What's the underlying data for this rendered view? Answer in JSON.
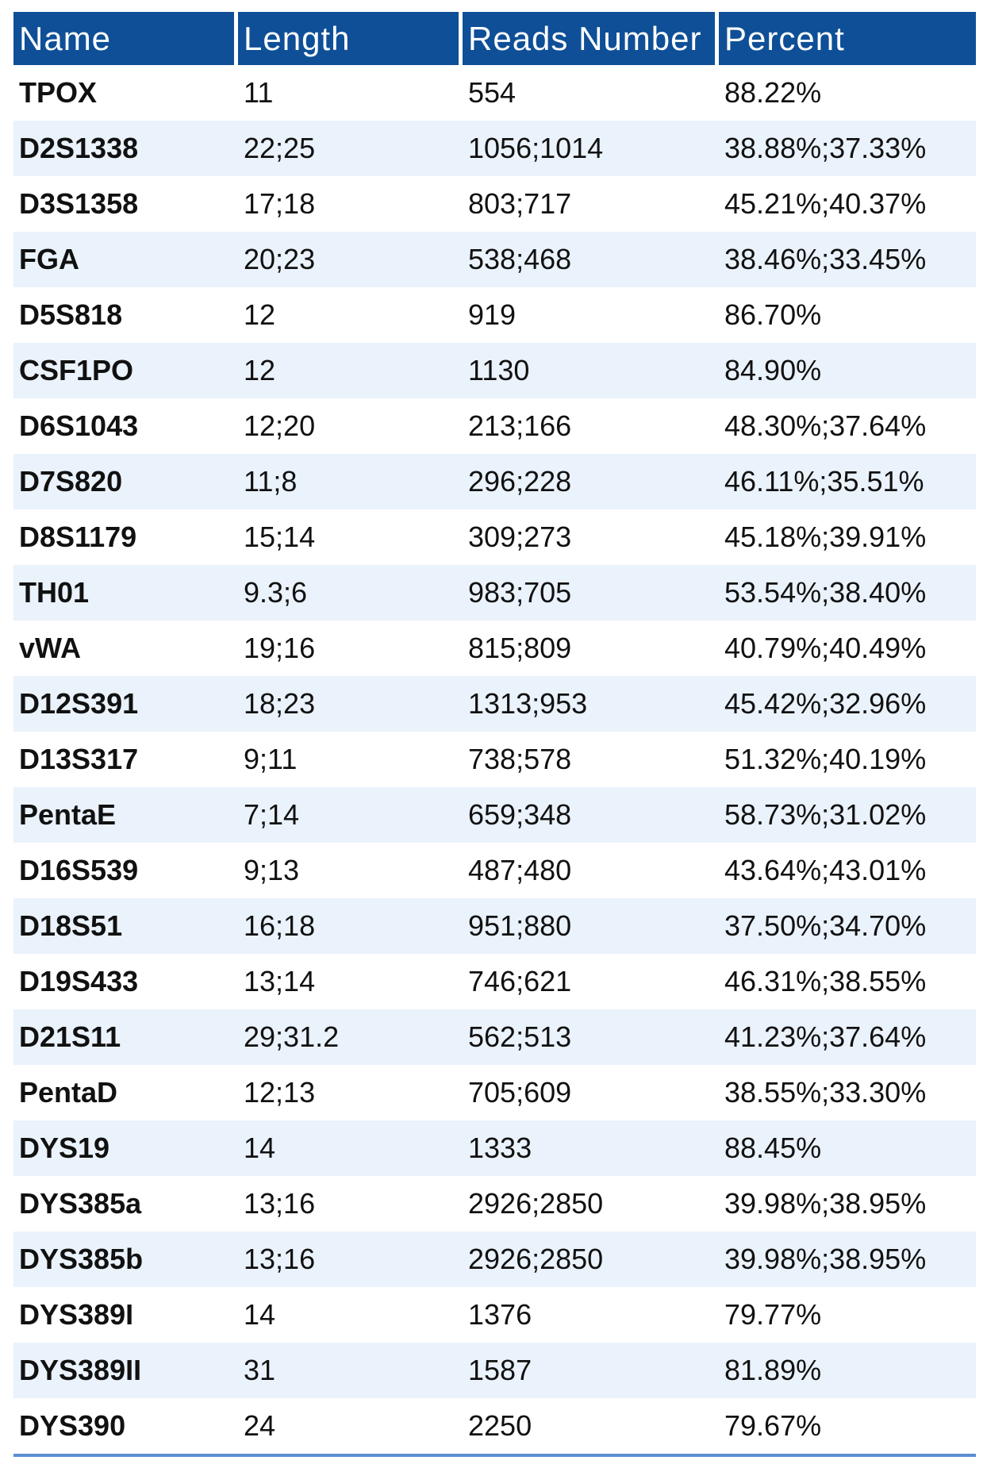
{
  "columns": [
    "Name",
    "Length",
    "Reads Number",
    "Percent"
  ],
  "rows": [
    {
      "name": "TPOX",
      "length": "11",
      "reads": "554",
      "percent": "88.22%"
    },
    {
      "name": "D2S1338",
      "length": "22;25",
      "reads": "1056;1014",
      "percent": "38.88%;37.33%"
    },
    {
      "name": "D3S1358",
      "length": "17;18",
      "reads": "803;717",
      "percent": "45.21%;40.37%"
    },
    {
      "name": "FGA",
      "length": "20;23",
      "reads": "538;468",
      "percent": "38.46%;33.45%"
    },
    {
      "name": "D5S818",
      "length": "12",
      "reads": "919",
      "percent": "86.70%"
    },
    {
      "name": "CSF1PO",
      "length": "12",
      "reads": "1130",
      "percent": "84.90%"
    },
    {
      "name": "D6S1043",
      "length": "12;20",
      "reads": "213;166",
      "percent": "48.30%;37.64%"
    },
    {
      "name": "D7S820",
      "length": "11;8",
      "reads": "296;228",
      "percent": "46.11%;35.51%"
    },
    {
      "name": "D8S1179",
      "length": "15;14",
      "reads": "309;273",
      "percent": "45.18%;39.91%"
    },
    {
      "name": "TH01",
      "length": "9.3;6",
      "reads": "983;705",
      "percent": "53.54%;38.40%"
    },
    {
      "name": "vWA",
      "length": "19;16",
      "reads": "815;809",
      "percent": "40.79%;40.49%"
    },
    {
      "name": "D12S391",
      "length": "18;23",
      "reads": "1313;953",
      "percent": "45.42%;32.96%"
    },
    {
      "name": "D13S317",
      "length": "9;11",
      "reads": "738;578",
      "percent": "51.32%;40.19%"
    },
    {
      "name": "PentaE",
      "length": "7;14",
      "reads": "659;348",
      "percent": "58.73%;31.02%"
    },
    {
      "name": "D16S539",
      "length": "9;13",
      "reads": "487;480",
      "percent": "43.64%;43.01%"
    },
    {
      "name": "D18S51",
      "length": "16;18",
      "reads": "951;880",
      "percent": "37.50%;34.70%"
    },
    {
      "name": "D19S433",
      "length": "13;14",
      "reads": "746;621",
      "percent": "46.31%;38.55%"
    },
    {
      "name": "D21S11",
      "length": "29;31.2",
      "reads": "562;513",
      "percent": "41.23%;37.64%"
    },
    {
      "name": "PentaD",
      "length": "12;13",
      "reads": "705;609",
      "percent": "38.55%;33.30%"
    },
    {
      "name": "DYS19",
      "length": "14",
      "reads": "1333",
      "percent": "88.45%"
    },
    {
      "name": "DYS385a",
      "length": "13;16",
      "reads": "2926;2850",
      "percent": "39.98%;38.95%"
    },
    {
      "name": "DYS385b",
      "length": "13;16",
      "reads": "2926;2850",
      "percent": "39.98%;38.95%"
    },
    {
      "name": "DYS389I",
      "length": "14",
      "reads": "1376",
      "percent": "79.77%"
    },
    {
      "name": "DYS389II",
      "length": "31",
      "reads": "1587",
      "percent": "81.89%"
    },
    {
      "name": "DYS390",
      "length": "24",
      "reads": "2250",
      "percent": "79.67%"
    }
  ],
  "colors": {
    "header_bg": "#0e4f97",
    "stripe_bg": "#eaf2fb",
    "bottom_rule": "#5b8ed1"
  }
}
